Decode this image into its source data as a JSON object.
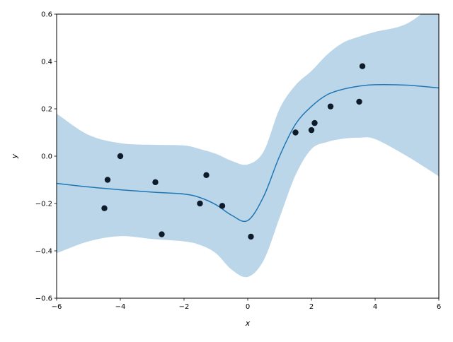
{
  "chart_data": {
    "type": "scatter",
    "title": "",
    "xlabel": "x",
    "ylabel": "y",
    "xlim": [
      -6,
      6
    ],
    "ylim": [
      -0.6,
      0.6
    ],
    "grid": false,
    "xticks": [
      -6,
      -4,
      -2,
      0,
      2,
      4,
      6
    ],
    "xtick_labels": [
      "−6",
      "−4",
      "−2",
      "0",
      "2",
      "4",
      "6"
    ],
    "yticks": [
      -0.6,
      -0.4,
      -0.2,
      0.0,
      0.2,
      0.4,
      0.6
    ],
    "ytick_labels": [
      "−0.6",
      "−0.4",
      "−0.2",
      "0.0",
      "0.2",
      "0.4",
      "0.6"
    ],
    "points": {
      "x": [
        -4.5,
        -4.4,
        -4.0,
        -2.9,
        -2.7,
        -1.5,
        -1.3,
        -0.8,
        0.1,
        1.5,
        2.0,
        2.1,
        2.6,
        3.5,
        3.6
      ],
      "y": [
        -0.22,
        -0.1,
        0.0,
        -0.11,
        -0.33,
        -0.2,
        -0.08,
        -0.21,
        -0.34,
        0.1,
        0.11,
        0.14,
        0.21,
        0.23,
        0.38
      ],
      "color": "#0d1b2a"
    },
    "mean_curve": {
      "x": [
        -6,
        -5,
        -4,
        -3,
        -2,
        -1.5,
        -1,
        -0.5,
        0,
        0.5,
        1,
        1.5,
        2,
        2.5,
        3,
        3.5,
        4,
        5,
        6
      ],
      "y": [
        -0.115,
        -0.13,
        -0.142,
        -0.152,
        -0.16,
        -0.175,
        -0.205,
        -0.25,
        -0.272,
        -0.17,
        0.0,
        0.135,
        0.21,
        0.26,
        0.283,
        0.296,
        0.302,
        0.3,
        0.288
      ],
      "color": "#1f77b4"
    },
    "confidence_band": {
      "x": [
        -6,
        -5,
        -4,
        -3,
        -2,
        -1.5,
        -1,
        -0.5,
        0,
        0.5,
        1,
        1.5,
        2,
        2.5,
        3,
        3.5,
        4,
        5,
        6
      ],
      "upper": [
        0.18,
        0.09,
        0.055,
        0.048,
        0.045,
        0.03,
        0.01,
        -0.02,
        -0.035,
        0.02,
        0.2,
        0.3,
        0.36,
        0.43,
        0.48,
        0.505,
        0.525,
        0.56,
        0.66
      ],
      "lower": [
        -0.41,
        -0.36,
        -0.338,
        -0.35,
        -0.36,
        -0.375,
        -0.41,
        -0.48,
        -0.51,
        -0.44,
        -0.26,
        -0.08,
        0.03,
        0.06,
        0.074,
        0.078,
        0.072,
        0.0,
        -0.085
      ],
      "color": "#1f77b4",
      "opacity": 0.3
    }
  }
}
